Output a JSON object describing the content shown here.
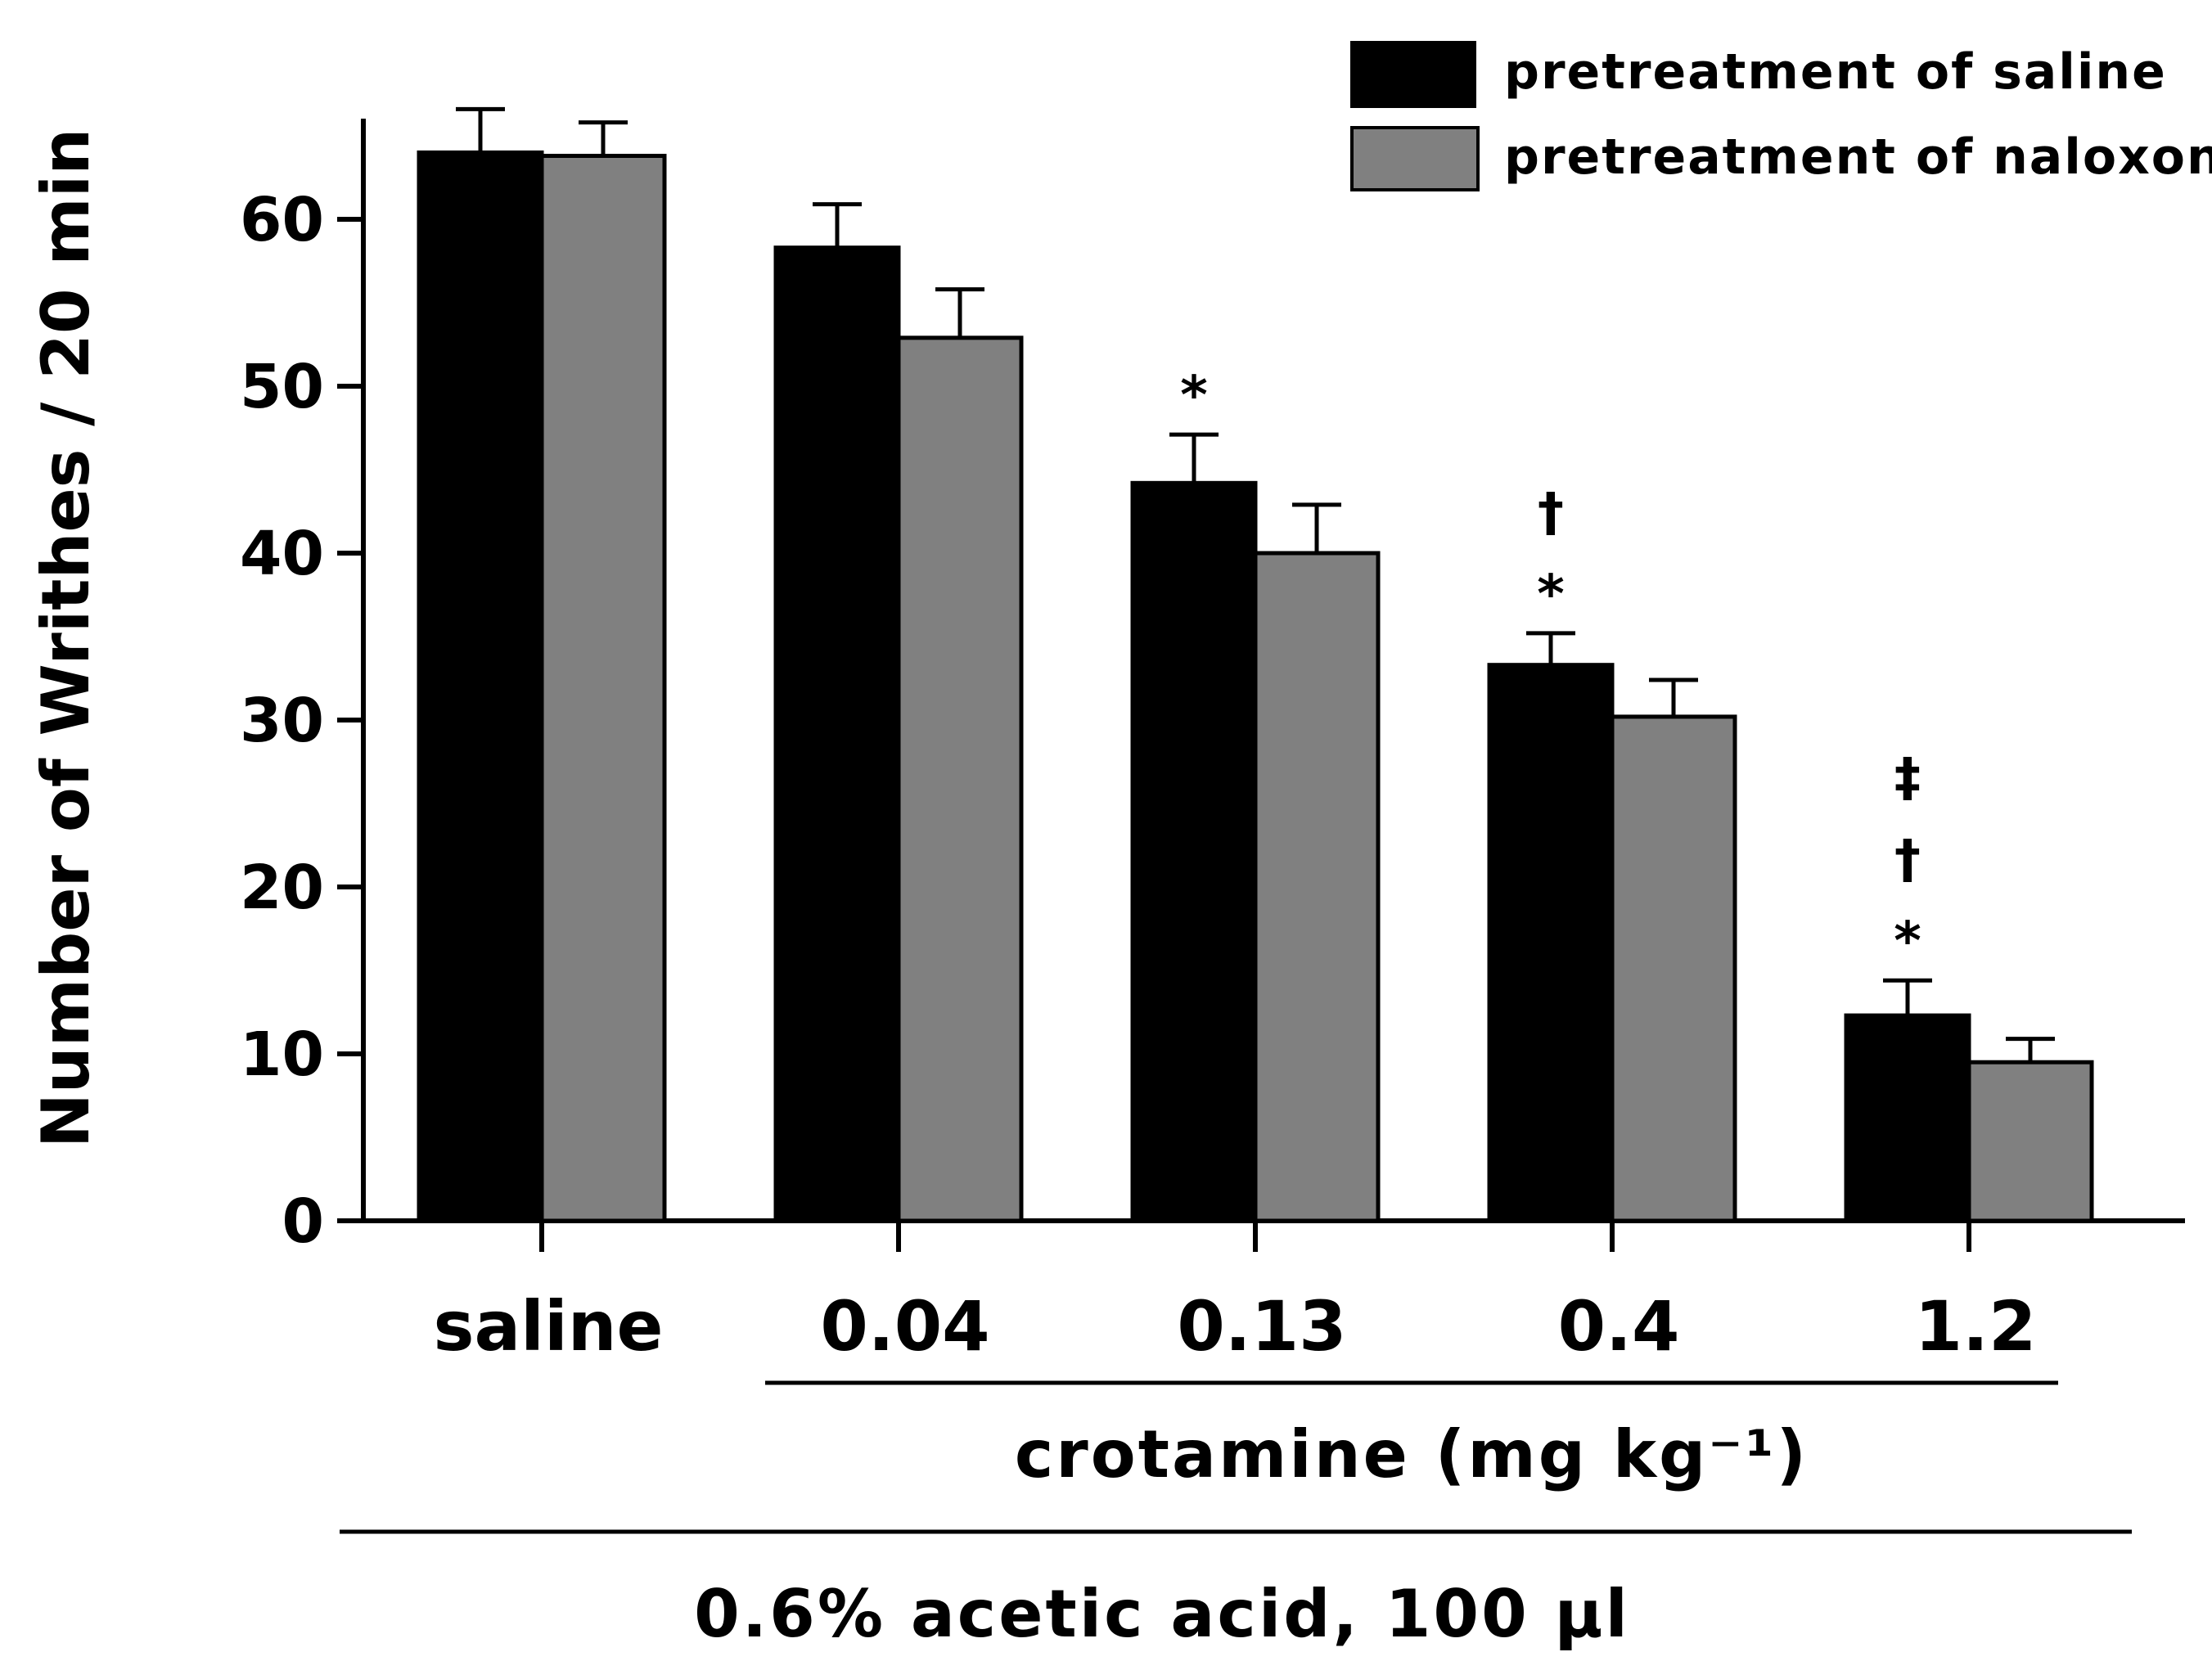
{
  "chart_data": {
    "type": "bar",
    "title": "",
    "ylabel": "Number of Writhes / 20 min",
    "ylim": [
      0,
      67
    ],
    "yticks": [
      0,
      10,
      20,
      30,
      40,
      50,
      60
    ],
    "categories": [
      "saline",
      "0.04",
      "0.13",
      "0.4",
      "1.2"
    ],
    "series": [
      {
        "name": "pretreatment of saline",
        "color": "#000000",
        "values": [
          64.0,
          58.3,
          44.2,
          33.3,
          12.3
        ],
        "errors": [
          2.6,
          2.6,
          2.9,
          1.9,
          2.1
        ]
      },
      {
        "name": "pretreatment of naloxone",
        "color": "#808080",
        "values": [
          63.8,
          52.9,
          40.0,
          30.2,
          9.5
        ],
        "errors": [
          2.0,
          2.9,
          2.9,
          2.2,
          1.4
        ]
      }
    ],
    "significance": [
      {
        "category": "0.13",
        "marks": [
          "*"
        ]
      },
      {
        "category": "0.4",
        "marks": [
          "*",
          "†"
        ]
      },
      {
        "category": "1.2",
        "marks": [
          "*",
          "†",
          "‡"
        ]
      }
    ],
    "group_label": "crotamine (mg kg⁻¹)",
    "treatment_label": "0.6% acetic acid, 100 µl",
    "legend_position": "top-right"
  }
}
